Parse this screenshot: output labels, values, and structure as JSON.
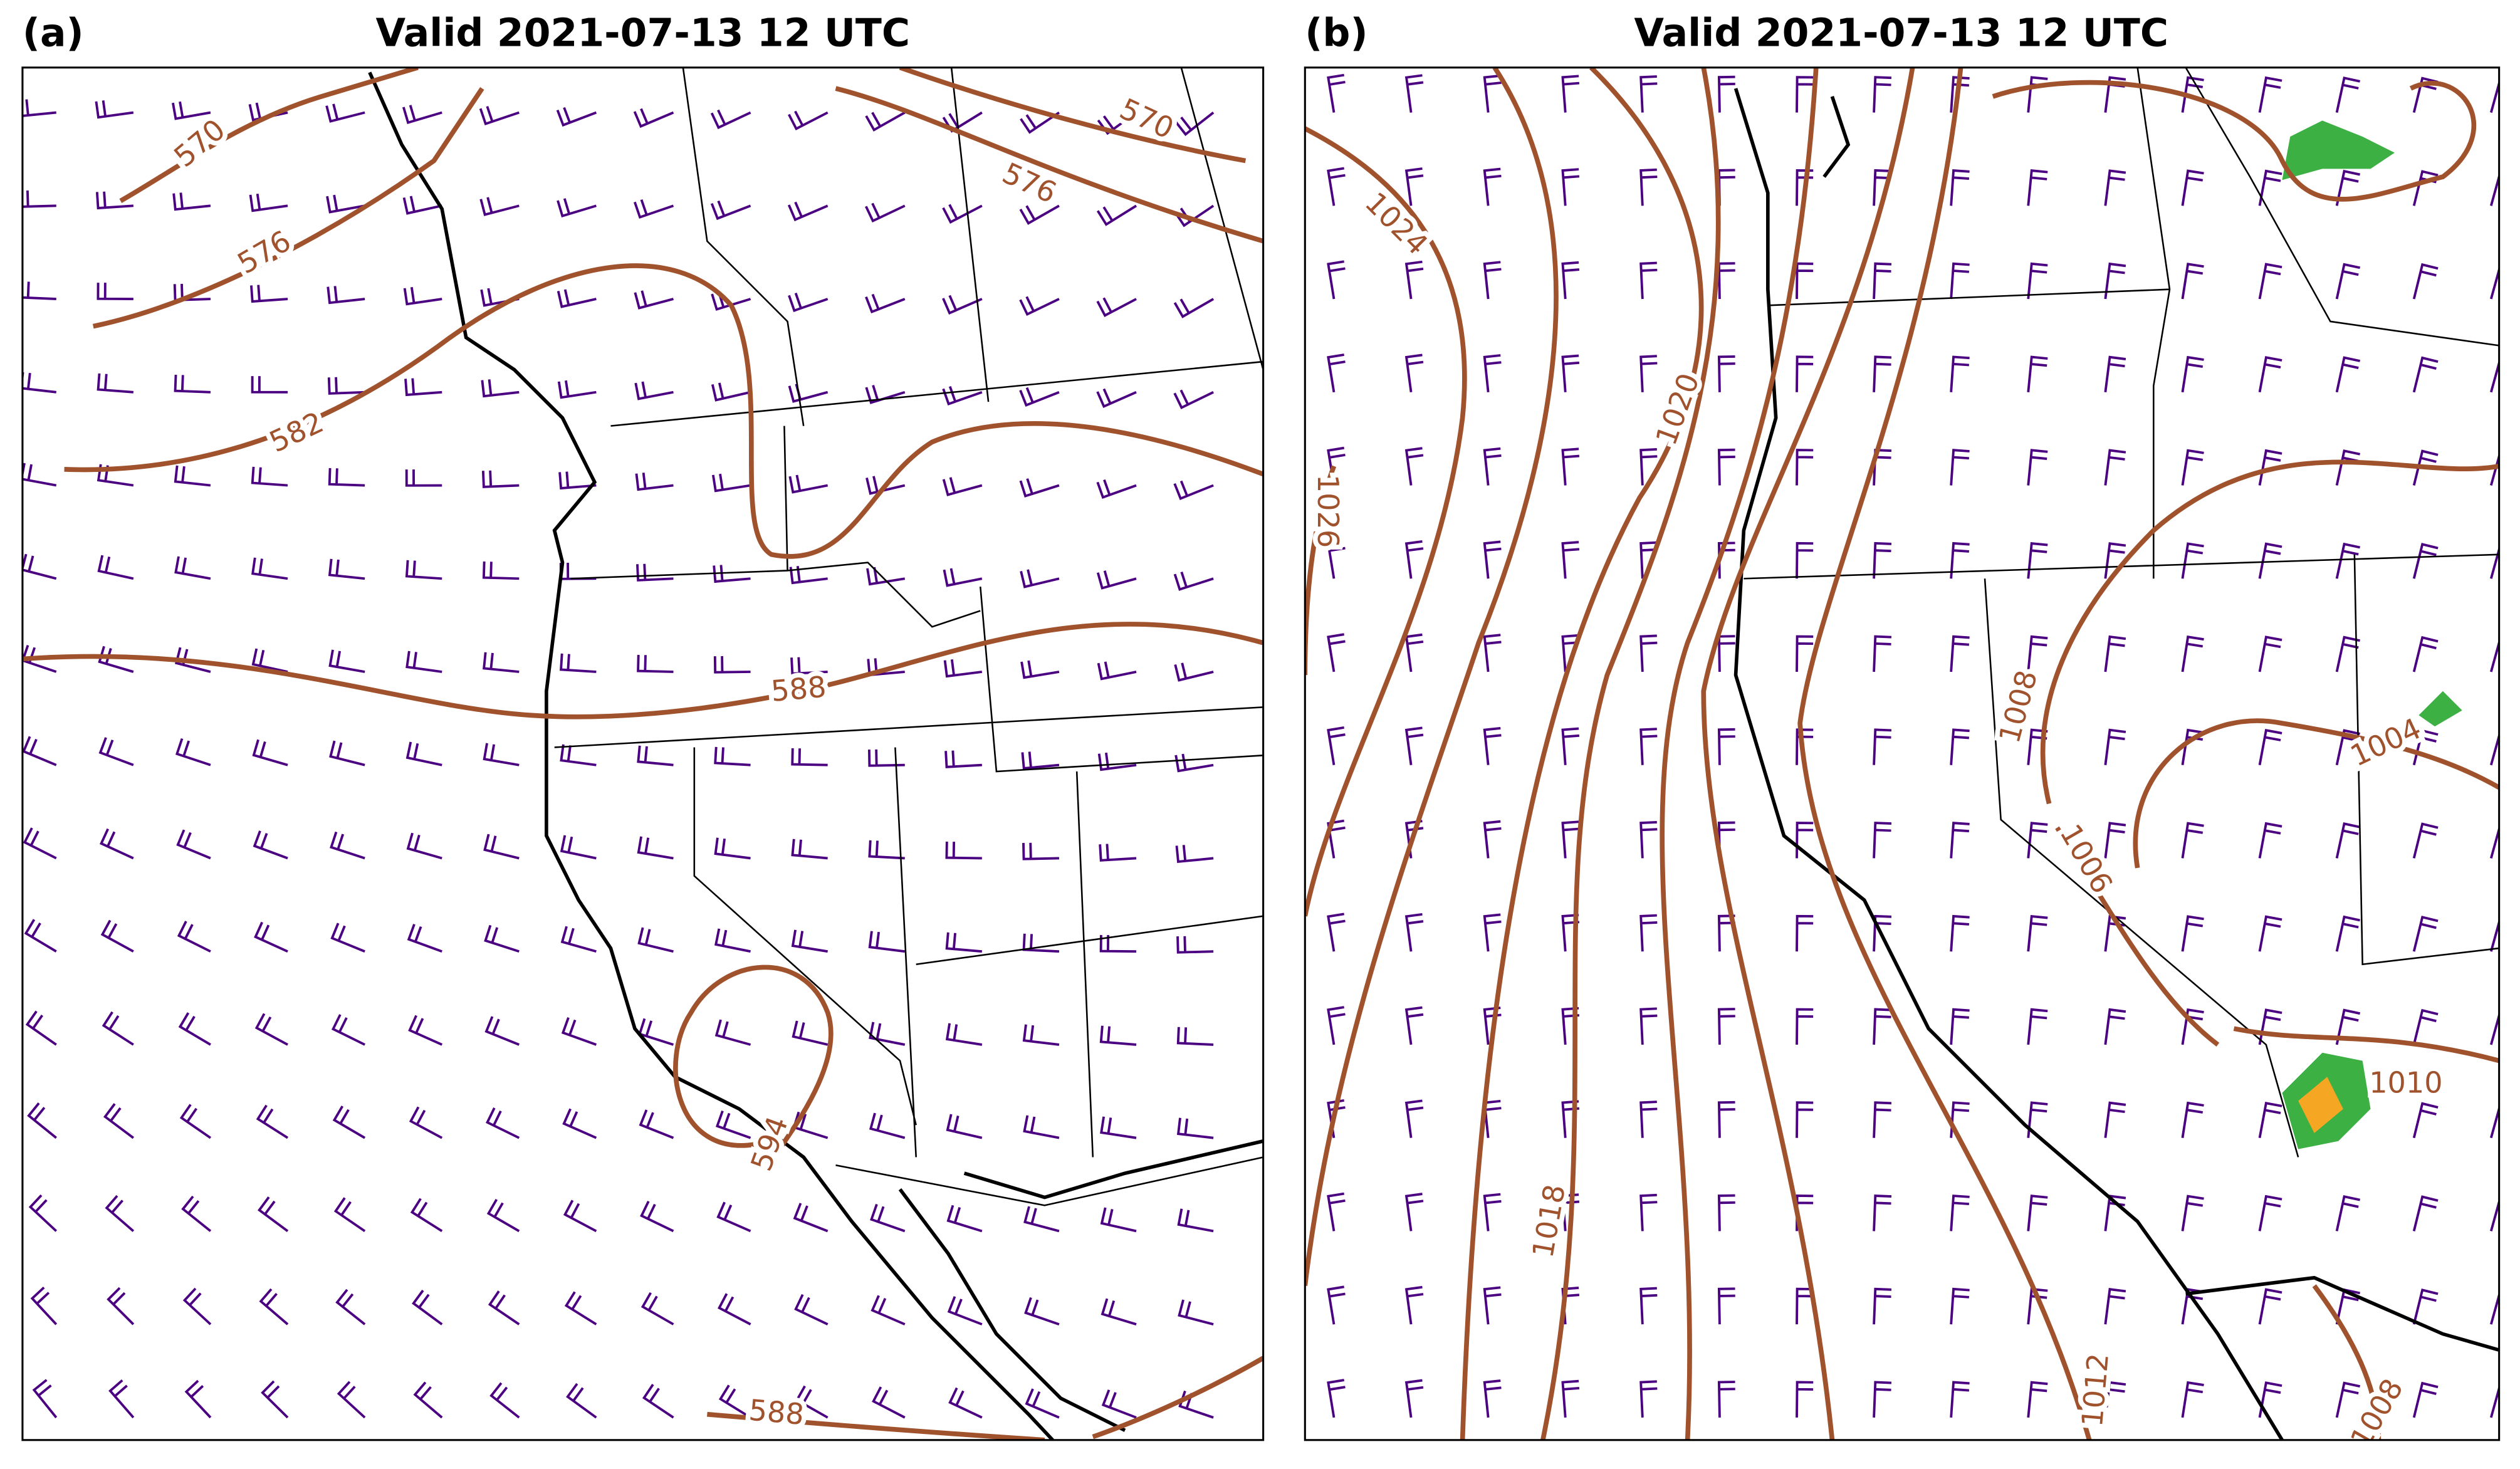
{
  "panels": [
    {
      "label": "(a)",
      "title": "Valid 2021-07-13 12 UTC",
      "contour_labels": [
        "570",
        "576",
        "582",
        "570",
        "576",
        "588",
        "594",
        "588"
      ]
    },
    {
      "label": "(b)",
      "title": "Valid 2021-07-13 12 UTC",
      "contour_labels": [
        "1024",
        "1026",
        "1020",
        "1018",
        "1008",
        "1006",
        "1004",
        "1010",
        "1012",
        "1008"
      ]
    }
  ]
}
